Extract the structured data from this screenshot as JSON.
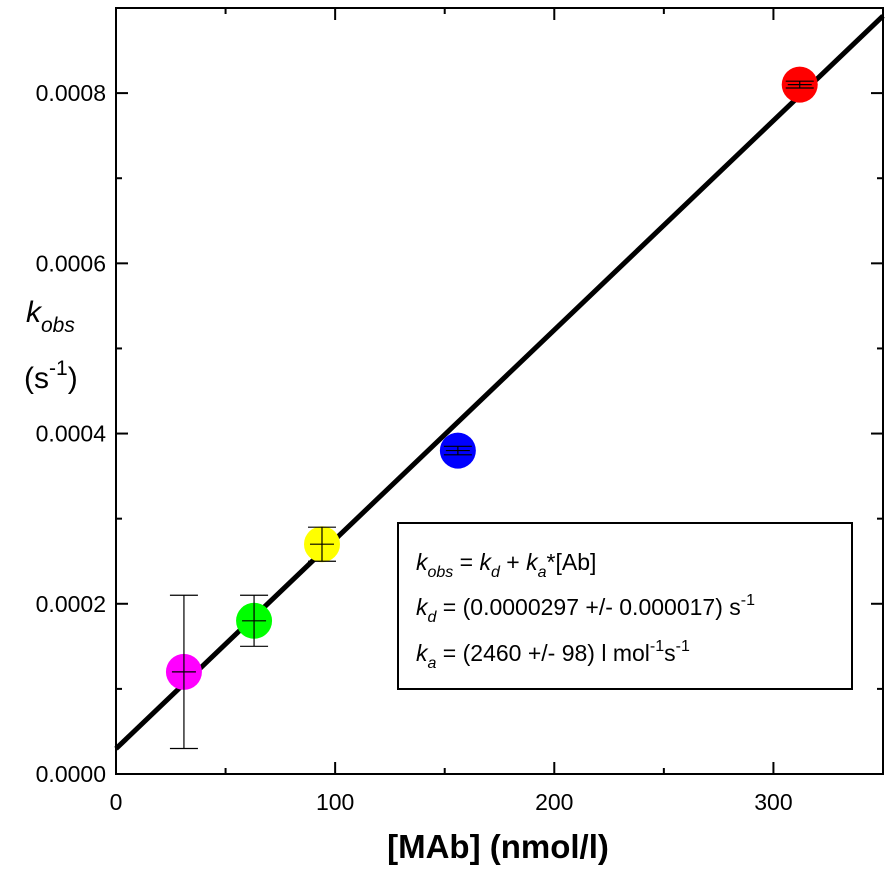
{
  "chart_data": {
    "type": "scatter",
    "xlabel": "[MAb] (nmol/l)",
    "ylabel": {
      "main": "k",
      "sub": "obs",
      "unit_prefix": "(s",
      "unit_sup": "-1",
      "unit_suffix": ")"
    },
    "xlim": [
      0,
      350
    ],
    "ylim": [
      0,
      0.0009
    ],
    "x_ticks": [
      "0",
      "100",
      "200",
      "300"
    ],
    "y_ticks": [
      "0.0000",
      "0.0002",
      "0.0004",
      "0.0006",
      "0.0008"
    ],
    "grid": false,
    "points": [
      {
        "x": 31,
        "y": 0.00012,
        "err": 9e-05,
        "color": "#ff00ff"
      },
      {
        "x": 63,
        "y": 0.00018,
        "err": 3e-05,
        "color": "#00ff00"
      },
      {
        "x": 94,
        "y": 0.00027,
        "err": 2e-05,
        "color": "#ffff00"
      },
      {
        "x": 156,
        "y": 0.00038,
        "err": 5e-06,
        "color": "#0000ff"
      },
      {
        "x": 312,
        "y": 0.00081,
        "err": 4e-06,
        "color": "#ff0000"
      }
    ],
    "fit_line": {
      "intercept": 2.97e-05,
      "slope": 2.46e-06,
      "color": "#000000"
    },
    "annotation": {
      "line1": {
        "k": "k",
        "sub": "obs",
        "rest1": " = ",
        "k2": "k",
        "sub2": "d",
        "rest2": " + ",
        "k3": "k",
        "sub3": "a",
        "rest3": "*[Ab]"
      },
      "line2": {
        "k": "k",
        "sub": "d",
        "text": " = (0.0000297 +/- 0.000017) s",
        "sup": "-1"
      },
      "line3": {
        "k": "k",
        "sub": "a",
        "text": " = (2460 +/- 98) l mol",
        "sup1": "-1",
        "mid": "s",
        "sup2": "-1"
      }
    }
  }
}
